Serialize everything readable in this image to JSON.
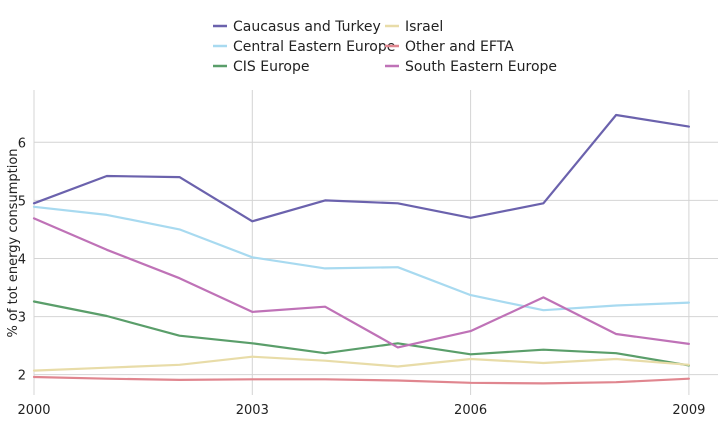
{
  "chart_data": {
    "type": "line",
    "title": "",
    "xlabel": "",
    "ylabel": "% of tot energy consumption",
    "x": [
      2000,
      2001,
      2002,
      2003,
      2004,
      2005,
      2006,
      2007,
      2008,
      2009
    ],
    "xlim": [
      2000,
      2009.4
    ],
    "ylim": [
      1.65,
      6.9
    ],
    "x_ticks": [
      2000,
      2003,
      2006,
      2009
    ],
    "y_ticks": [
      2,
      3,
      4,
      5,
      6
    ],
    "grid": true,
    "legend_position": "top",
    "series": [
      {
        "name": "Caucasus and Turkey",
        "color": "#6b62ad",
        "values": [
          4.95,
          5.42,
          5.4,
          4.64,
          5.0,
          4.95,
          4.7,
          4.95,
          6.47,
          6.27
        ]
      },
      {
        "name": "Central Eastern Europe",
        "color": "#a8daf0",
        "values": [
          4.89,
          4.75,
          4.5,
          4.02,
          3.83,
          3.85,
          3.37,
          3.11,
          3.19,
          3.24
        ]
      },
      {
        "name": "CIS Europe",
        "color": "#5a9e6a",
        "values": [
          3.26,
          3.01,
          2.67,
          2.54,
          2.37,
          2.54,
          2.35,
          2.43,
          2.37,
          2.16
        ]
      },
      {
        "name": "Israel",
        "color": "#e8dca8",
        "values": [
          2.07,
          2.12,
          2.17,
          2.31,
          2.24,
          2.14,
          2.27,
          2.2,
          2.27,
          2.17
        ]
      },
      {
        "name": "Other and EFTA",
        "color": "#e0868f",
        "values": [
          1.96,
          1.93,
          1.91,
          1.92,
          1.92,
          1.9,
          1.86,
          1.85,
          1.87,
          1.93
        ]
      },
      {
        "name": "South Eastern Europe",
        "color": "#bf72b7",
        "values": [
          4.69,
          4.15,
          3.66,
          3.08,
          3.17,
          2.47,
          2.75,
          3.33,
          2.7,
          2.53
        ]
      }
    ]
  }
}
